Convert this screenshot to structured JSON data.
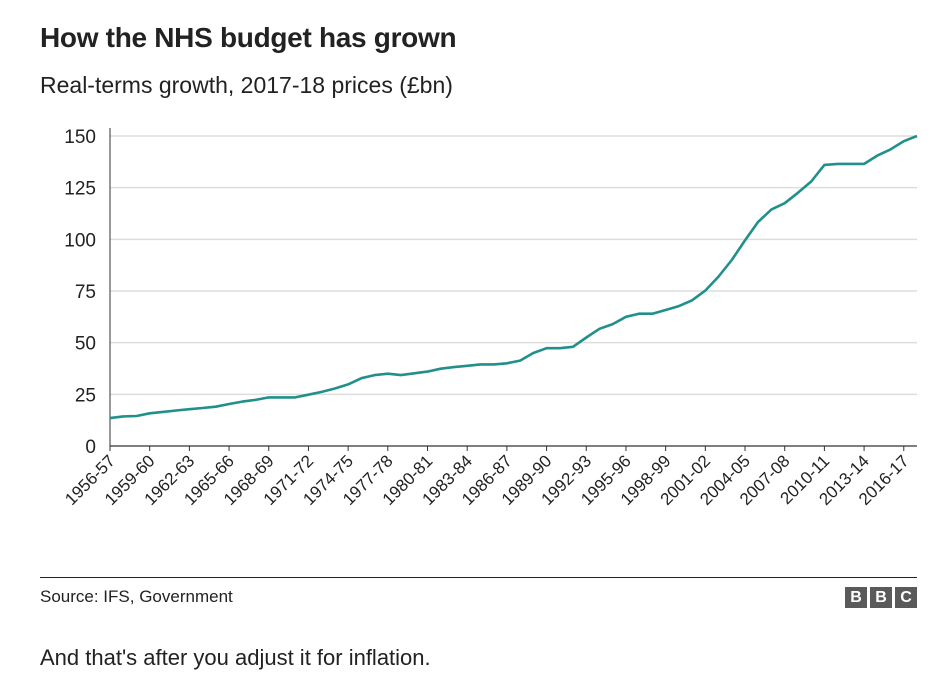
{
  "header": {
    "title": "How the NHS budget has grown",
    "subtitle": "Real-terms growth, 2017-18 prices (£bn)"
  },
  "footer": {
    "source": "Source: IFS, Government",
    "logo": [
      "B",
      "B",
      "C"
    ],
    "caption": "And that's after you adjust it for inflation."
  },
  "colors": {
    "line": "#21908c",
    "grid": "#dddddd",
    "axis": "#333333",
    "text": "#222222"
  },
  "chart_data": {
    "type": "line",
    "title": "How the NHS budget has grown",
    "subtitle": "Real-terms growth, 2017-18 prices (£bn)",
    "xlabel": "",
    "ylabel": "",
    "ylim": [
      0,
      150
    ],
    "yticks": [
      0,
      25,
      50,
      75,
      100,
      125,
      150
    ],
    "grid": true,
    "x_tick_labels": [
      "1956-57",
      "1959-60",
      "1962-63",
      "1965-66",
      "1968-69",
      "1971-72",
      "1974-75",
      "1977-78",
      "1980-81",
      "1983-84",
      "1986-87",
      "1989-90",
      "1992-93",
      "1995-96",
      "1998-99",
      "2001-02",
      "2004-05",
      "2007-08",
      "2010-11",
      "2013-14",
      "2016-17"
    ],
    "x": [
      "1956-57",
      "1957-58",
      "1958-59",
      "1959-60",
      "1960-61",
      "1961-62",
      "1962-63",
      "1963-64",
      "1964-65",
      "1965-66",
      "1966-67",
      "1967-68",
      "1968-69",
      "1969-70",
      "1970-71",
      "1971-72",
      "1972-73",
      "1973-74",
      "1974-75",
      "1975-76",
      "1976-77",
      "1977-78",
      "1978-79",
      "1979-80",
      "1980-81",
      "1981-82",
      "1982-83",
      "1983-84",
      "1984-85",
      "1985-86",
      "1986-87",
      "1987-88",
      "1988-89",
      "1989-90",
      "1990-91",
      "1991-92",
      "1992-93",
      "1993-94",
      "1994-95",
      "1995-96",
      "1996-97",
      "1997-98",
      "1998-99",
      "1999-00",
      "2000-01",
      "2001-02",
      "2002-03",
      "2003-04",
      "2004-05",
      "2005-06",
      "2006-07",
      "2007-08",
      "2008-09",
      "2009-10",
      "2010-11",
      "2011-12",
      "2012-13",
      "2013-14",
      "2014-15",
      "2015-16",
      "2016-17",
      "2017-18"
    ],
    "values": [
      13.5,
      14.3,
      14.5,
      15.8,
      16.5,
      17.2,
      17.8,
      18.4,
      19.0,
      20.3,
      21.5,
      22.3,
      23.5,
      23.5,
      23.5,
      24.8,
      26.2,
      27.8,
      29.8,
      32.8,
      34.3,
      35.0,
      34.3,
      35.2,
      36.0,
      37.4,
      38.2,
      38.8,
      39.5,
      39.5,
      40.0,
      41.3,
      45.0,
      47.3,
      47.3,
      48.0,
      52.5,
      56.7,
      59.0,
      62.5,
      64.0,
      64.0,
      65.8,
      67.7,
      70.5,
      75.2,
      82.0,
      90.0,
      99.5,
      108.5,
      114.5,
      117.5,
      122.5,
      128.0,
      136.0,
      136.5,
      136.5,
      136.5,
      140.5,
      143.5,
      147.5,
      150.0
    ],
    "series": [
      {
        "name": "",
        "color": "#21908c"
      }
    ]
  }
}
